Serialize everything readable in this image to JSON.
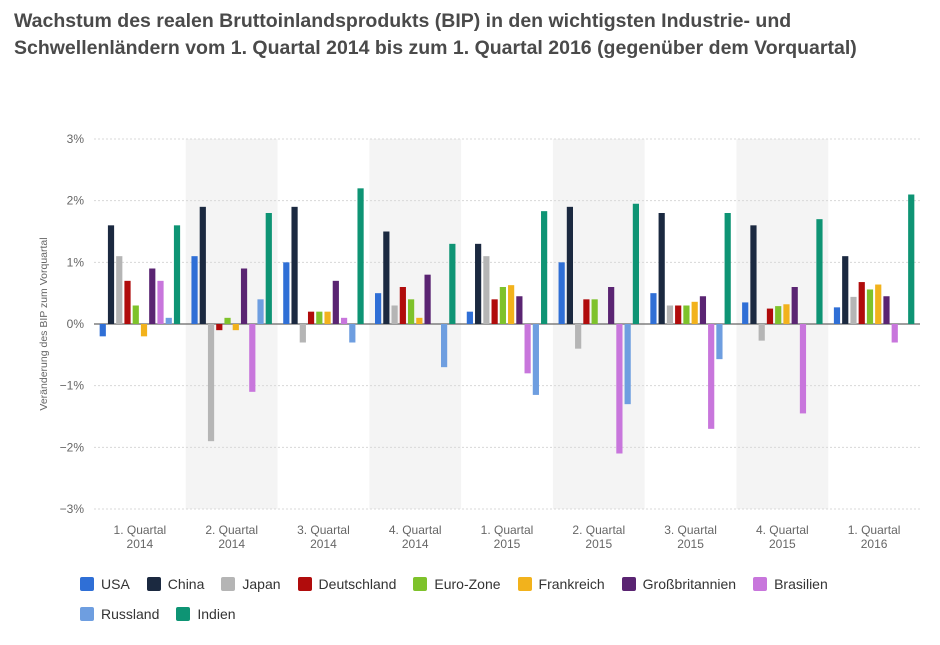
{
  "chart_data": {
    "type": "bar",
    "title": "Wachstum des realen Bruttoinlandsprodukts (BIP) in den wichtigsten Industrie- und Schwellenländern vom 1. Quartal 2014 bis zum 1. Quartal 2016 (gegenüber dem Vorquartal)",
    "ylabel": "Veränderung des BIP zum Vorquartal",
    "xlabel": "",
    "ylim": [
      -3,
      3
    ],
    "yticks": [
      {
        "value": 3,
        "label": "3%"
      },
      {
        "value": 2,
        "label": "2%"
      },
      {
        "value": 1,
        "label": "1%"
      },
      {
        "value": 0,
        "label": "0%"
      },
      {
        "value": -1,
        "label": "−1%"
      },
      {
        "value": -2,
        "label": "−2%"
      },
      {
        "value": -3,
        "label": "−3%"
      }
    ],
    "categories": [
      [
        "1. Quartal",
        "2014"
      ],
      [
        "2. Quartal",
        "2014"
      ],
      [
        "3. Quartal",
        "2014"
      ],
      [
        "4. Quartal",
        "2014"
      ],
      [
        "1. Quartal",
        "2015"
      ],
      [
        "2. Quartal",
        "2015"
      ],
      [
        "3. Quartal",
        "2015"
      ],
      [
        "4. Quartal",
        "2015"
      ],
      [
        "1. Quartal",
        "2016"
      ]
    ],
    "series": [
      {
        "name": "USA",
        "color": "#2f6fd6",
        "values": [
          -0.2,
          1.1,
          1.0,
          0.5,
          0.2,
          1.0,
          0.5,
          0.35,
          0.27
        ]
      },
      {
        "name": "China",
        "color": "#1b2940",
        "values": [
          1.6,
          1.9,
          1.9,
          1.5,
          1.3,
          1.9,
          1.8,
          1.6,
          1.1
        ]
      },
      {
        "name": "Japan",
        "color": "#b5b5b5",
        "values": [
          1.1,
          -1.9,
          -0.3,
          0.3,
          1.1,
          -0.4,
          0.3,
          -0.27,
          0.44
        ]
      },
      {
        "name": "Deutschland",
        "color": "#b00c0c",
        "values": [
          0.7,
          -0.1,
          0.2,
          0.6,
          0.4,
          0.4,
          0.3,
          0.25,
          0.68
        ]
      },
      {
        "name": "Euro-Zone",
        "color": "#7ec22b",
        "values": [
          0.3,
          0.1,
          0.2,
          0.4,
          0.6,
          0.4,
          0.3,
          0.29,
          0.56
        ]
      },
      {
        "name": "Frankreich",
        "color": "#f2b21c",
        "values": [
          -0.2,
          -0.1,
          0.2,
          0.1,
          0.63,
          0.0,
          0.36,
          0.32,
          0.64
        ]
      },
      {
        "name": "Großbritannien",
        "color": "#5a2472",
        "values": [
          0.9,
          0.9,
          0.7,
          0.8,
          0.45,
          0.6,
          0.45,
          0.6,
          0.45
        ]
      },
      {
        "name": "Brasilien",
        "color": "#c876dc",
        "values": [
          0.7,
          -1.1,
          0.1,
          0.0,
          -0.8,
          -2.1,
          -1.7,
          -1.45,
          -0.3
        ]
      },
      {
        "name": "Russland",
        "color": "#6e9ee0",
        "values": [
          0.1,
          0.4,
          -0.3,
          -0.7,
          -1.15,
          -1.3,
          -0.57,
          0.0,
          0.0
        ]
      },
      {
        "name": "Indien",
        "color": "#0e9474",
        "values": [
          1.6,
          1.8,
          2.2,
          1.3,
          1.83,
          1.95,
          1.8,
          1.7,
          2.1
        ]
      }
    ]
  }
}
